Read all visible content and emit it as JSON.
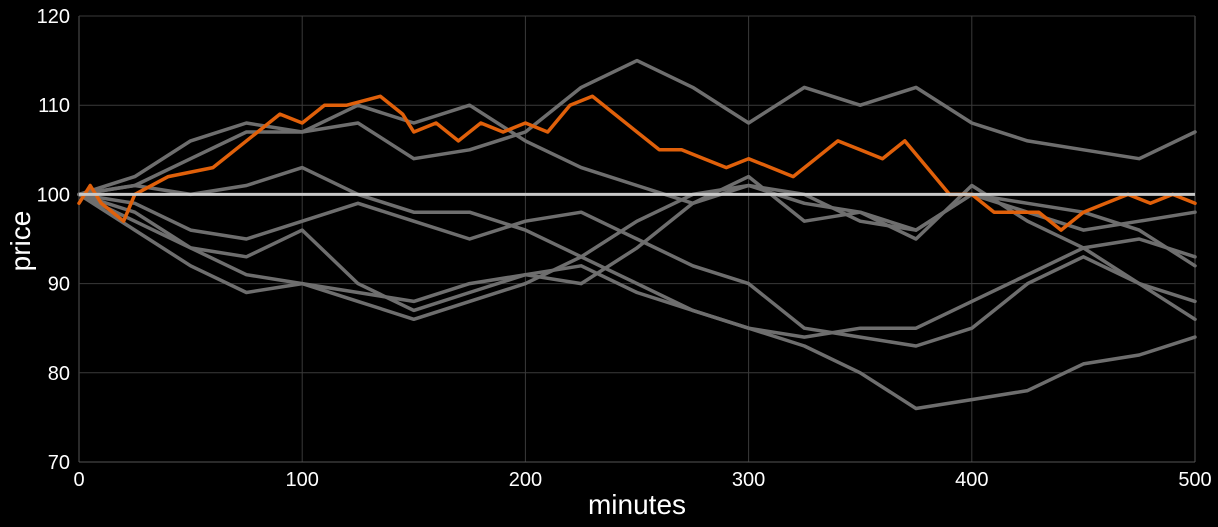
{
  "chart_data": {
    "type": "line",
    "xlabel": "minutes",
    "ylabel": "price",
    "xlim": [
      0,
      500
    ],
    "ylim": [
      70,
      120
    ],
    "x_ticks": [
      "0",
      "100",
      "200",
      "300",
      "400",
      "500"
    ],
    "y_ticks": [
      "70",
      "80",
      "90",
      "100",
      "110",
      "120"
    ],
    "grid": true,
    "colors": {
      "highlight": "#e0600a",
      "other": "#6e6e6e",
      "reference": "#c8c8c8",
      "background": "#000000"
    },
    "reference_line": {
      "y": 100
    },
    "series": [
      {
        "role": "other",
        "x": [
          0,
          25,
          50,
          75,
          100,
          125,
          150,
          175,
          200,
          225,
          250,
          275,
          300,
          325,
          350,
          375,
          400,
          425,
          450,
          475,
          500
        ],
        "y": [
          100,
          101,
          104,
          107,
          107,
          108,
          104,
          105,
          107,
          112,
          115,
          112,
          108,
          112,
          110,
          112,
          108,
          106,
          105,
          104,
          107
        ]
      },
      {
        "role": "other",
        "x": [
          0,
          25,
          50,
          75,
          100,
          125,
          150,
          175,
          200,
          225,
          250,
          275,
          300,
          325,
          350,
          375,
          400,
          425,
          450,
          475,
          500
        ],
        "y": [
          100,
          102,
          106,
          108,
          107,
          110,
          108,
          110,
          106,
          103,
          101,
          99,
          101,
          100,
          97,
          96,
          100,
          99,
          98,
          96,
          92
        ]
      },
      {
        "role": "other",
        "x": [
          0,
          25,
          50,
          75,
          100,
          125,
          150,
          175,
          200,
          225,
          250,
          275,
          300,
          325,
          350,
          375,
          400,
          425,
          450,
          475,
          500
        ],
        "y": [
          100,
          97,
          94,
          91,
          90,
          89,
          88,
          90,
          91,
          92,
          89,
          87,
          85,
          83,
          80,
          76,
          77,
          78,
          81,
          82,
          84
        ]
      },
      {
        "role": "other",
        "x": [
          0,
          25,
          50,
          75,
          100,
          125,
          150,
          175,
          200,
          225,
          250,
          275,
          300,
          325,
          350,
          375,
          400,
          425,
          450,
          475,
          500
        ],
        "y": [
          100,
          96,
          92,
          89,
          90,
          88,
          86,
          88,
          90,
          93,
          97,
          100,
          101,
          99,
          98,
          96,
          100,
          98,
          96,
          97,
          98
        ]
      },
      {
        "role": "other",
        "x": [
          0,
          25,
          50,
          75,
          100,
          125,
          150,
          175,
          200,
          225,
          250,
          275,
          300,
          325,
          350,
          375,
          400,
          425,
          450,
          475,
          500
        ],
        "y": [
          100,
          99,
          96,
          95,
          97,
          99,
          97,
          95,
          97,
          98,
          95,
          92,
          90,
          85,
          84,
          83,
          85,
          90,
          93,
          90,
          86
        ]
      },
      {
        "role": "other",
        "x": [
          0,
          25,
          50,
          75,
          100,
          125,
          150,
          175,
          200,
          225,
          250,
          275,
          300,
          325,
          350,
          375,
          400,
          425,
          450,
          475,
          500
        ],
        "y": [
          100,
          101,
          100,
          101,
          103,
          100,
          98,
          98,
          96,
          93,
          90,
          87,
          85,
          84,
          85,
          85,
          88,
          91,
          94,
          95,
          93
        ]
      },
      {
        "role": "other",
        "x": [
          0,
          25,
          50,
          75,
          100,
          125,
          150,
          175,
          200,
          225,
          250,
          275,
          300,
          325,
          350,
          375,
          400,
          425,
          450,
          475,
          500
        ],
        "y": [
          100,
          98,
          94,
          93,
          96,
          90,
          87,
          89,
          91,
          90,
          94,
          99,
          102,
          97,
          98,
          95,
          101,
          97,
          94,
          90,
          88
        ]
      },
      {
        "role": "highlight",
        "x": [
          0,
          5,
          10,
          15,
          20,
          25,
          40,
          60,
          80,
          90,
          100,
          110,
          120,
          135,
          145,
          150,
          160,
          170,
          180,
          190,
          200,
          210,
          220,
          230,
          240,
          250,
          260,
          270,
          280,
          290,
          300,
          310,
          320,
          330,
          340,
          350,
          360,
          370,
          380,
          390,
          400,
          410,
          420,
          430,
          440,
          450,
          460,
          470,
          480,
          490,
          500
        ],
        "y": [
          99,
          101,
          99,
          98,
          97,
          100,
          102,
          103,
          107,
          109,
          108,
          110,
          110,
          111,
          109,
          107,
          108,
          106,
          108,
          107,
          108,
          107,
          110,
          111,
          109,
          107,
          105,
          105,
          104,
          103,
          104,
          103,
          102,
          104,
          106,
          105,
          104,
          106,
          103,
          100,
          100,
          98,
          98,
          98,
          96,
          98,
          99,
          100,
          99,
          100,
          99
        ]
      }
    ]
  }
}
